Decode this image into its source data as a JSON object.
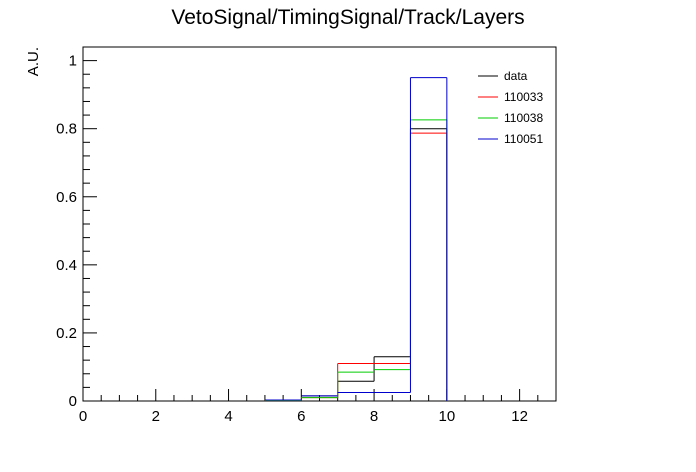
{
  "chart_data": {
    "type": "histogram",
    "title": "VetoSignal/TimingSignal/Track/Layers",
    "xlabel": "",
    "ylabel": "A.U.",
    "xlim": [
      0,
      13
    ],
    "ylim": [
      0,
      1.04
    ],
    "x_ticks": [
      "0",
      "2",
      "4",
      "6",
      "8",
      "10",
      "12"
    ],
    "y_ticks": [
      "0",
      "0.2",
      "0.4",
      "0.6",
      "0.8",
      "1"
    ],
    "bin_edges": [
      0,
      1,
      2,
      3,
      4,
      5,
      6,
      7,
      8,
      9,
      10,
      11,
      12,
      13
    ],
    "legend_position": "top-right",
    "series": [
      {
        "name": "data",
        "color": "#000000",
        "values": [
          0,
          0,
          0,
          0,
          0,
          0,
          0.015,
          0.058,
          0.13,
          0.8,
          0,
          0,
          0
        ]
      },
      {
        "name": "110033",
        "color": "#ff0000",
        "values": [
          0,
          0,
          0,
          0,
          0,
          0.002,
          0.01,
          0.11,
          0.11,
          0.787,
          0,
          0,
          0
        ]
      },
      {
        "name": "110038",
        "color": "#00cc00",
        "values": [
          0,
          0,
          0,
          0,
          0,
          0.002,
          0.01,
          0.085,
          0.092,
          0.826,
          0,
          0,
          0
        ]
      },
      {
        "name": "110051",
        "color": "#0000cc",
        "values": [
          0,
          0,
          0,
          0,
          0,
          0.003,
          0.015,
          0.025,
          0.025,
          0.95,
          0,
          0,
          0
        ]
      }
    ]
  }
}
